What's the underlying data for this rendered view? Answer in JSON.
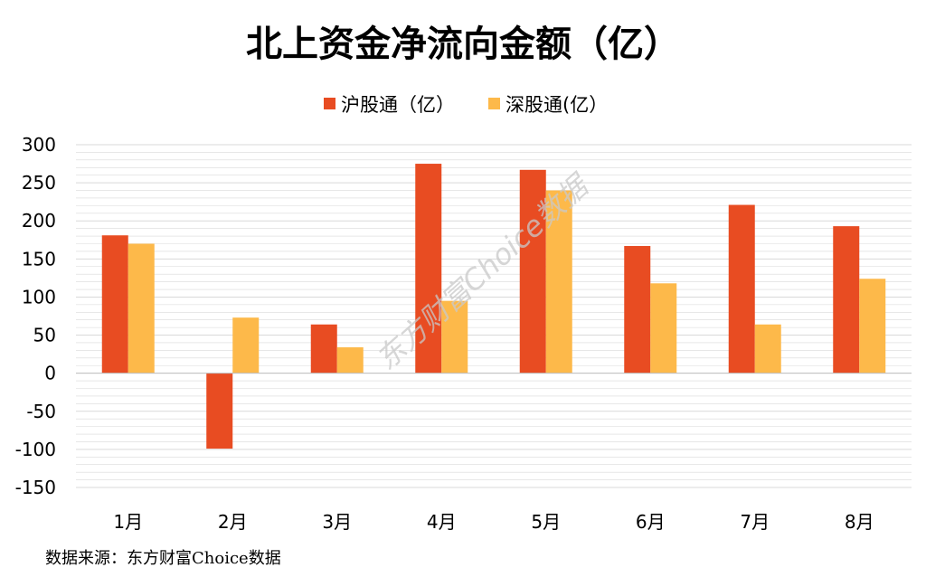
{
  "chart_data": {
    "type": "bar",
    "title": "北上资金净流向金额（亿）",
    "xlabel": "",
    "ylabel": "",
    "categories": [
      "1月",
      "2月",
      "3月",
      "4月",
      "5月",
      "6月",
      "7月",
      "8月"
    ],
    "series": [
      {
        "name": "沪股通（亿）",
        "color": "#e84c22",
        "values": [
          181,
          -99,
          64,
          275,
          267,
          167,
          221,
          193
        ]
      },
      {
        "name": "深股通(亿）",
        "color": "#fdb94a",
        "values": [
          170,
          73,
          34,
          95,
          240,
          118,
          64,
          124
        ]
      }
    ],
    "ylim": [
      -150,
      300
    ],
    "yticks": [
      300,
      250,
      200,
      150,
      100,
      50,
      0,
      -50,
      -100,
      -150
    ],
    "grid": true,
    "grid_color": "#d9d9d9",
    "legend_position": "top-center"
  },
  "watermark": "东方财富Choice数据",
  "source_note": "数据来源：东方财富Choice数据"
}
